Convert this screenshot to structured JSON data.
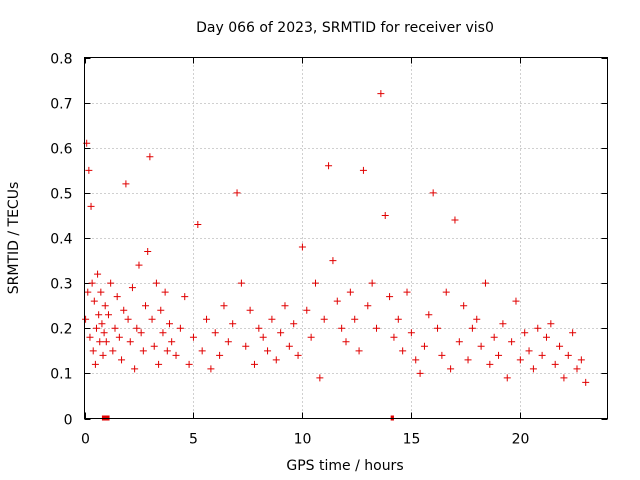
{
  "chart_data": {
    "type": "scatter",
    "title": "Day 066 of 2023, SRMTID for receiver vis0",
    "xlabel": "GPS time / hours",
    "ylabel": "SRMTID / TECUs",
    "xlim": [
      0,
      24
    ],
    "ylim": [
      0,
      0.8
    ],
    "xticks": [
      0,
      5,
      10,
      15,
      20
    ],
    "yticks": [
      0,
      0.1,
      0.2,
      0.3,
      0.4,
      0.5,
      0.6,
      0.7,
      0.8
    ],
    "xtick_labels": [
      "0",
      "5",
      "10",
      "15",
      "20"
    ],
    "ytick_labels": [
      "0",
      "0.1",
      "0.2",
      "0.3",
      "0.4",
      "0.5",
      "0.6",
      "0.7",
      "0.8"
    ],
    "grid": true,
    "marker": "plus",
    "color": "#e00000",
    "series": [
      {
        "name": "vis0",
        "x": [
          0.05,
          0.1,
          0.15,
          0.2,
          0.25,
          0.3,
          0.35,
          0.4,
          0.45,
          0.5,
          0.55,
          0.6,
          0.65,
          0.7,
          0.75,
          0.8,
          0.85,
          0.9,
          0.95,
          1.0,
          1.1,
          1.2,
          1.3,
          1.4,
          1.5,
          1.6,
          1.7,
          1.8,
          1.9,
          2.0,
          2.1,
          2.2,
          2.3,
          2.4,
          2.5,
          2.6,
          2.7,
          2.8,
          2.9,
          3.0,
          3.1,
          3.2,
          3.3,
          3.4,
          3.5,
          3.6,
          3.7,
          3.8,
          3.9,
          4.0,
          4.2,
          4.4,
          4.6,
          4.8,
          5.0,
          5.2,
          5.4,
          5.6,
          5.8,
          6.0,
          6.2,
          6.4,
          6.6,
          6.8,
          7.0,
          7.2,
          7.4,
          7.6,
          7.8,
          8.0,
          8.2,
          8.4,
          8.6,
          8.8,
          9.0,
          9.2,
          9.4,
          9.6,
          9.8,
          10.0,
          10.2,
          10.4,
          10.6,
          10.8,
          11.0,
          11.2,
          11.4,
          11.6,
          11.8,
          12.0,
          12.2,
          12.4,
          12.6,
          12.8,
          13.0,
          13.2,
          13.4,
          13.6,
          13.8,
          14.0,
          14.2,
          14.4,
          14.6,
          14.8,
          15.0,
          15.2,
          15.4,
          15.6,
          15.8,
          16.0,
          16.2,
          16.4,
          16.6,
          16.8,
          17.0,
          17.2,
          17.4,
          17.6,
          17.8,
          18.0,
          18.2,
          18.4,
          18.6,
          18.8,
          19.0,
          19.2,
          19.4,
          19.6,
          19.8,
          20.0,
          20.2,
          20.4,
          20.6,
          20.8,
          21.0,
          21.2,
          21.4,
          21.6,
          21.8,
          22.0,
          22.2,
          22.4,
          22.6,
          22.8,
          23.0
        ],
        "y": [
          0.22,
          0.61,
          0.28,
          0.55,
          0.18,
          0.47,
          0.3,
          0.15,
          0.26,
          0.12,
          0.2,
          0.32,
          0.23,
          0.17,
          0.28,
          0.21,
          0.14,
          0.19,
          0.25,
          0.17,
          0.23,
          0.3,
          0.15,
          0.2,
          0.27,
          0.18,
          0.13,
          0.24,
          0.52,
          0.22,
          0.17,
          0.29,
          0.11,
          0.2,
          0.34,
          0.19,
          0.15,
          0.25,
          0.37,
          0.58,
          0.22,
          0.16,
          0.3,
          0.12,
          0.24,
          0.19,
          0.28,
          0.15,
          0.21,
          0.17,
          0.14,
          0.2,
          0.27,
          0.12,
          0.18,
          0.43,
          0.15,
          0.22,
          0.11,
          0.19,
          0.14,
          0.25,
          0.17,
          0.21,
          0.5,
          0.3,
          0.16,
          0.24,
          0.12,
          0.2,
          0.18,
          0.15,
          0.22,
          0.13,
          0.19,
          0.25,
          0.16,
          0.21,
          0.14,
          0.38,
          0.24,
          0.18,
          0.3,
          0.09,
          0.22,
          0.56,
          0.35,
          0.26,
          0.2,
          0.17,
          0.28,
          0.22,
          0.15,
          0.55,
          0.25,
          0.3,
          0.2,
          0.72,
          0.45,
          0.27,
          0.18,
          0.22,
          0.15,
          0.28,
          0.19,
          0.13,
          0.1,
          0.16,
          0.23,
          0.5,
          0.2,
          0.14,
          0.28,
          0.11,
          0.44,
          0.17,
          0.25,
          0.13,
          0.2,
          0.22,
          0.16,
          0.3,
          0.12,
          0.18,
          0.14,
          0.21,
          0.09,
          0.17,
          0.26,
          0.13,
          0.19,
          0.15,
          0.11,
          0.2,
          0.14,
          0.18,
          0.21,
          0.12,
          0.16,
          0.09,
          0.14,
          0.19,
          0.11,
          0.13,
          0.08
        ]
      }
    ],
    "zero_markers": [
      {
        "x0": 0.8,
        "x1": 1.15,
        "y": 0
      },
      {
        "x0": 14.05,
        "x1": 14.2,
        "y": 0
      }
    ]
  }
}
